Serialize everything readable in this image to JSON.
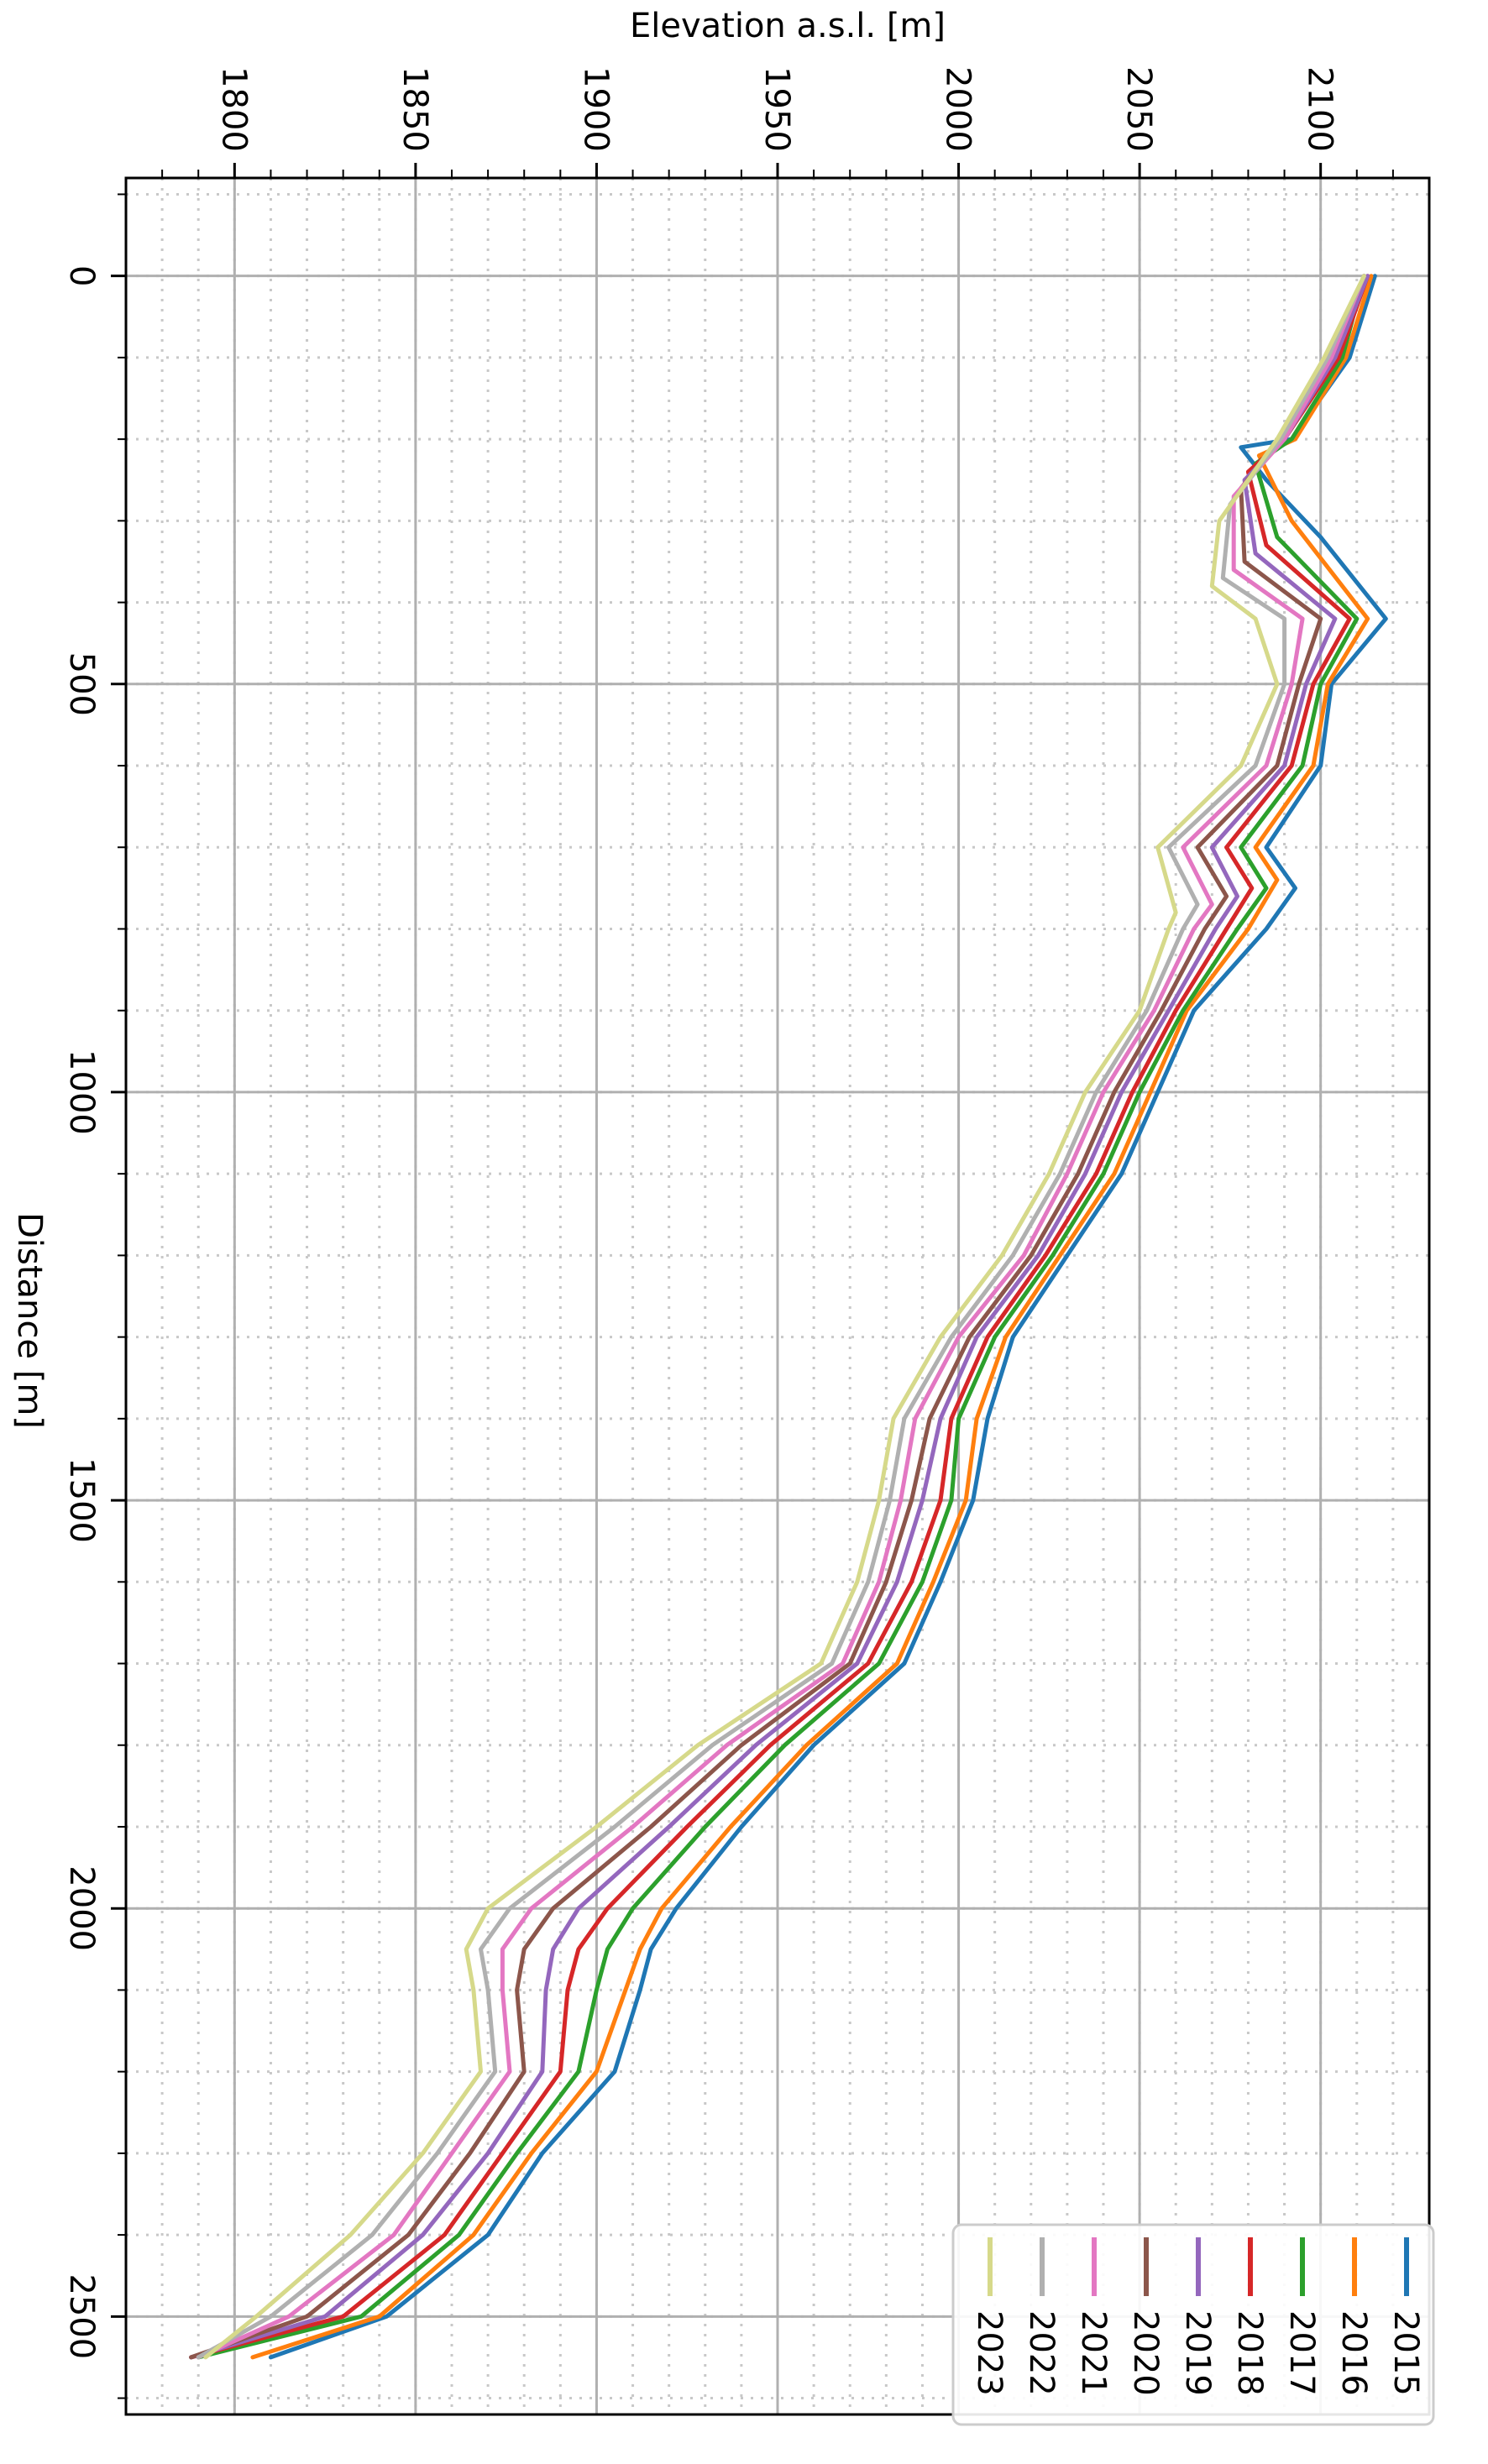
{
  "chart_data": {
    "type": "line",
    "xlabel": "Distance [m]",
    "ylabel": "Elevation a.s.l. [m]",
    "xlim": [
      -120,
      2620
    ],
    "ylim": [
      1770,
      2130
    ],
    "x_ticks": [
      0,
      500,
      1000,
      1500,
      2000,
      2500
    ],
    "y_ticks": [
      1800,
      1850,
      1900,
      1950,
      2000,
      2050,
      2100
    ],
    "grid": {
      "major": true,
      "minor": true
    },
    "rotated": "90deg-clockwise",
    "legend_position": "bottom-right",
    "colors": {
      "2015": "#1f77b4",
      "2016": "#ff7f0e",
      "2017": "#2ca02c",
      "2018": "#d62728",
      "2019": "#9467bd",
      "2020": "#8c564b",
      "2021": "#e377c2",
      "2022": "#b0b0b0",
      "2023": "#d6d98a"
    },
    "series": [
      {
        "name": "2015",
        "points": [
          [
            0,
            2115
          ],
          [
            100,
            2108
          ],
          [
            200,
            2092
          ],
          [
            210,
            2078
          ],
          [
            250,
            2085
          ],
          [
            320,
            2100
          ],
          [
            420,
            2118
          ],
          [
            500,
            2103
          ],
          [
            600,
            2100
          ],
          [
            700,
            2085
          ],
          [
            750,
            2093
          ],
          [
            800,
            2085
          ],
          [
            900,
            2065
          ],
          [
            1000,
            2055
          ],
          [
            1100,
            2045
          ],
          [
            1200,
            2030
          ],
          [
            1300,
            2015
          ],
          [
            1400,
            2008
          ],
          [
            1500,
            2004
          ],
          [
            1600,
            1995
          ],
          [
            1700,
            1985
          ],
          [
            1800,
            1960
          ],
          [
            1900,
            1940
          ],
          [
            2000,
            1922
          ],
          [
            2050,
            1915
          ],
          [
            2100,
            1912
          ],
          [
            2200,
            1905
          ],
          [
            2300,
            1885
          ],
          [
            2400,
            1870
          ],
          [
            2500,
            1842
          ],
          [
            2550,
            1810
          ]
        ]
      },
      {
        "name": "2016",
        "points": [
          [
            0,
            2114
          ],
          [
            100,
            2107
          ],
          [
            200,
            2093
          ],
          [
            220,
            2083
          ],
          [
            300,
            2092
          ],
          [
            420,
            2113
          ],
          [
            500,
            2102
          ],
          [
            600,
            2098
          ],
          [
            700,
            2082
          ],
          [
            740,
            2088
          ],
          [
            800,
            2080
          ],
          [
            900,
            2063
          ],
          [
            1000,
            2053
          ],
          [
            1100,
            2043
          ],
          [
            1200,
            2028
          ],
          [
            1300,
            2013
          ],
          [
            1400,
            2005
          ],
          [
            1500,
            2002
          ],
          [
            1600,
            1993
          ],
          [
            1700,
            1983
          ],
          [
            1800,
            1958
          ],
          [
            1900,
            1937
          ],
          [
            2000,
            1918
          ],
          [
            2050,
            1912
          ],
          [
            2100,
            1908
          ],
          [
            2200,
            1900
          ],
          [
            2300,
            1882
          ],
          [
            2400,
            1866
          ],
          [
            2500,
            1840
          ],
          [
            2550,
            1805
          ]
        ]
      },
      {
        "name": "2017",
        "points": [
          [
            0,
            2112
          ],
          [
            100,
            2106
          ],
          [
            200,
            2092
          ],
          [
            230,
            2082
          ],
          [
            320,
            2088
          ],
          [
            420,
            2110
          ],
          [
            500,
            2100
          ],
          [
            600,
            2095
          ],
          [
            700,
            2078
          ],
          [
            750,
            2085
          ],
          [
            800,
            2077
          ],
          [
            900,
            2062
          ],
          [
            1000,
            2050
          ],
          [
            1100,
            2040
          ],
          [
            1200,
            2026
          ],
          [
            1300,
            2010
          ],
          [
            1400,
            2000
          ],
          [
            1500,
            1998
          ],
          [
            1600,
            1990
          ],
          [
            1700,
            1978
          ],
          [
            1800,
            1952
          ],
          [
            1900,
            1930
          ],
          [
            2000,
            1910
          ],
          [
            2050,
            1903
          ],
          [
            2100,
            1900
          ],
          [
            2200,
            1895
          ],
          [
            2300,
            1878
          ],
          [
            2400,
            1862
          ],
          [
            2500,
            1835
          ],
          [
            2550,
            1790
          ]
        ]
      },
      {
        "name": "2018",
        "points": [
          [
            0,
            2113
          ],
          [
            100,
            2105
          ],
          [
            200,
            2090
          ],
          [
            240,
            2080
          ],
          [
            330,
            2085
          ],
          [
            420,
            2108
          ],
          [
            500,
            2098
          ],
          [
            600,
            2092
          ],
          [
            700,
            2074
          ],
          [
            750,
            2081
          ],
          [
            800,
            2074
          ],
          [
            900,
            2060
          ],
          [
            1000,
            2048
          ],
          [
            1100,
            2038
          ],
          [
            1200,
            2024
          ],
          [
            1300,
            2008
          ],
          [
            1400,
            1998
          ],
          [
            1500,
            1995
          ],
          [
            1600,
            1987
          ],
          [
            1700,
            1975
          ],
          [
            1800,
            1948
          ],
          [
            1900,
            1925
          ],
          [
            2000,
            1903
          ],
          [
            2050,
            1895
          ],
          [
            2100,
            1892
          ],
          [
            2200,
            1890
          ],
          [
            2300,
            1874
          ],
          [
            2400,
            1858
          ],
          [
            2500,
            1830
          ],
          [
            2550,
            1788
          ]
        ]
      },
      {
        "name": "2019",
        "points": [
          [
            0,
            2113
          ],
          [
            100,
            2104
          ],
          [
            200,
            2090
          ],
          [
            250,
            2079
          ],
          [
            340,
            2082
          ],
          [
            420,
            2104
          ],
          [
            500,
            2096
          ],
          [
            600,
            2090
          ],
          [
            700,
            2070
          ],
          [
            760,
            2077
          ],
          [
            800,
            2071
          ],
          [
            900,
            2058
          ],
          [
            1000,
            2045
          ],
          [
            1100,
            2035
          ],
          [
            1200,
            2022
          ],
          [
            1300,
            2005
          ],
          [
            1400,
            1995
          ],
          [
            1500,
            1990
          ],
          [
            1600,
            1983
          ],
          [
            1700,
            1972
          ],
          [
            1800,
            1944
          ],
          [
            1900,
            1920
          ],
          [
            2000,
            1895
          ],
          [
            2050,
            1888
          ],
          [
            2100,
            1886
          ],
          [
            2200,
            1885
          ],
          [
            2300,
            1870
          ],
          [
            2400,
            1852
          ],
          [
            2500,
            1825
          ],
          [
            2550,
            1788
          ]
        ]
      },
      {
        "name": "2020",
        "points": [
          [
            0,
            2112
          ],
          [
            100,
            2103
          ],
          [
            200,
            2089
          ],
          [
            260,
            2078
          ],
          [
            350,
            2079
          ],
          [
            420,
            2100
          ],
          [
            500,
            2094
          ],
          [
            600,
            2088
          ],
          [
            700,
            2066
          ],
          [
            760,
            2074
          ],
          [
            800,
            2068
          ],
          [
            900,
            2056
          ],
          [
            1000,
            2043
          ],
          [
            1100,
            2033
          ],
          [
            1200,
            2020
          ],
          [
            1300,
            2003
          ],
          [
            1400,
            1992
          ],
          [
            1500,
            1987
          ],
          [
            1600,
            1980
          ],
          [
            1700,
            1970
          ],
          [
            1800,
            1940
          ],
          [
            1900,
            1915
          ],
          [
            2000,
            1888
          ],
          [
            2050,
            1880
          ],
          [
            2100,
            1878
          ],
          [
            2200,
            1880
          ],
          [
            2300,
            1865
          ],
          [
            2400,
            1848
          ],
          [
            2500,
            1820
          ],
          [
            2550,
            1788
          ]
        ]
      },
      {
        "name": "2021",
        "points": [
          [
            0,
            2112
          ],
          [
            100,
            2103
          ],
          [
            200,
            2090
          ],
          [
            270,
            2076
          ],
          [
            360,
            2076
          ],
          [
            420,
            2095
          ],
          [
            500,
            2092
          ],
          [
            600,
            2085
          ],
          [
            700,
            2062
          ],
          [
            770,
            2070
          ],
          [
            800,
            2065
          ],
          [
            900,
            2054
          ],
          [
            1000,
            2040
          ],
          [
            1100,
            2030
          ],
          [
            1200,
            2018
          ],
          [
            1300,
            2000
          ],
          [
            1400,
            1988
          ],
          [
            1500,
            1984
          ],
          [
            1600,
            1978
          ],
          [
            1700,
            1968
          ],
          [
            1800,
            1936
          ],
          [
            1900,
            1910
          ],
          [
            2000,
            1882
          ],
          [
            2050,
            1874
          ],
          [
            2100,
            1874
          ],
          [
            2200,
            1876
          ],
          [
            2300,
            1860
          ],
          [
            2400,
            1844
          ],
          [
            2500,
            1815
          ],
          [
            2550,
            1790
          ]
        ]
      },
      {
        "name": "2022",
        "points": [
          [
            0,
            2112
          ],
          [
            100,
            2102
          ],
          [
            200,
            2089
          ],
          [
            280,
            2075
          ],
          [
            370,
            2073
          ],
          [
            420,
            2090
          ],
          [
            500,
            2090
          ],
          [
            600,
            2082
          ],
          [
            700,
            2058
          ],
          [
            770,
            2066
          ],
          [
            800,
            2062
          ],
          [
            900,
            2052
          ],
          [
            1000,
            2038
          ],
          [
            1100,
            2028
          ],
          [
            1200,
            2015
          ],
          [
            1300,
            1998
          ],
          [
            1400,
            1985
          ],
          [
            1500,
            1981
          ],
          [
            1600,
            1975
          ],
          [
            1700,
            1965
          ],
          [
            1800,
            1932
          ],
          [
            1900,
            1905
          ],
          [
            2000,
            1876
          ],
          [
            2050,
            1868
          ],
          [
            2100,
            1870
          ],
          [
            2200,
            1872
          ],
          [
            2300,
            1856
          ],
          [
            2400,
            1838
          ],
          [
            2500,
            1810
          ],
          [
            2550,
            1790
          ]
        ]
      },
      {
        "name": "2023",
        "points": [
          [
            0,
            2112
          ],
          [
            100,
            2101
          ],
          [
            200,
            2088
          ],
          [
            300,
            2072
          ],
          [
            380,
            2070
          ],
          [
            420,
            2082
          ],
          [
            500,
            2088
          ],
          [
            600,
            2078
          ],
          [
            700,
            2055
          ],
          [
            780,
            2060
          ],
          [
            800,
            2058
          ],
          [
            900,
            2050
          ],
          [
            1000,
            2035
          ],
          [
            1100,
            2025
          ],
          [
            1200,
            2012
          ],
          [
            1300,
            1995
          ],
          [
            1400,
            1982
          ],
          [
            1500,
            1978
          ],
          [
            1600,
            1972
          ],
          [
            1700,
            1962
          ],
          [
            1800,
            1928
          ],
          [
            1900,
            1900
          ],
          [
            2000,
            1870
          ],
          [
            2050,
            1864
          ],
          [
            2100,
            1866
          ],
          [
            2200,
            1868
          ],
          [
            2300,
            1852
          ],
          [
            2400,
            1832
          ],
          [
            2500,
            1806
          ],
          [
            2550,
            1792
          ]
        ]
      }
    ]
  }
}
